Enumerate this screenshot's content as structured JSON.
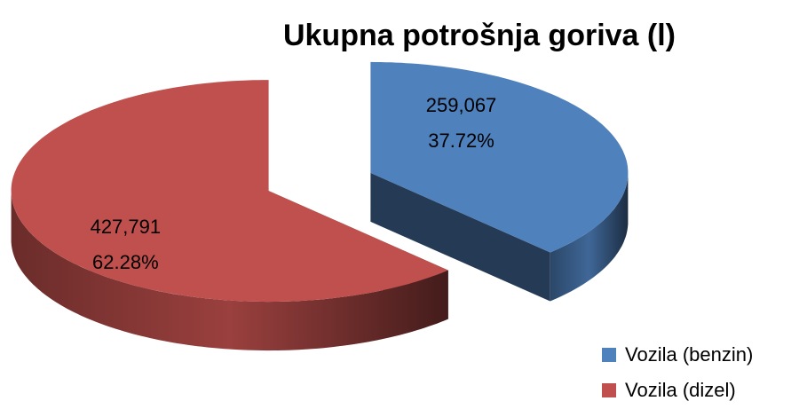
{
  "chart_data": {
    "type": "pie3d",
    "title": "Ukupna potrošnja goriva (l)",
    "categories": [
      "Vozila (benzin)",
      "Vozila (dizel)"
    ],
    "values": [
      259067,
      427791
    ],
    "value_labels": [
      "259,067",
      "427,791"
    ],
    "percent_labels": [
      "37.72%",
      "62.28%"
    ],
    "colors": [
      "#4f81bd",
      "#c0504d"
    ],
    "legend": "bottom-right"
  }
}
